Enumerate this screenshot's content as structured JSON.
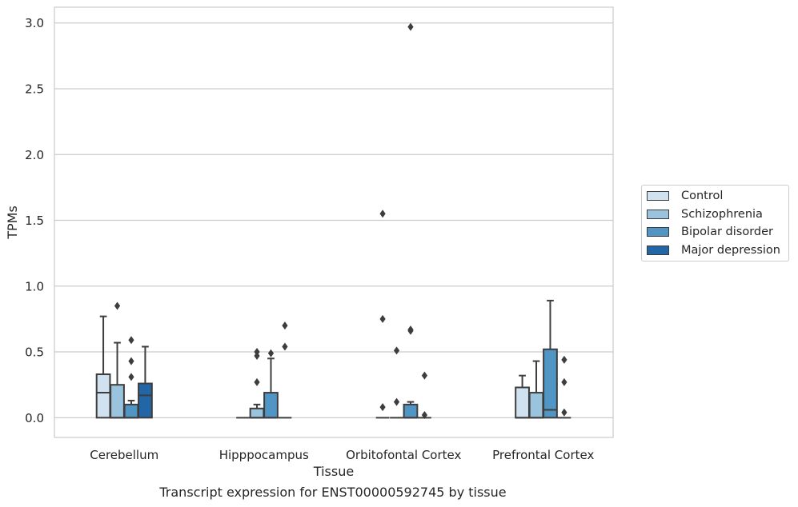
{
  "caption": "Transcript expression for ENST00000592745 by tissue",
  "chart_data": {
    "type": "box",
    "xlabel": "Tissue",
    "ylabel": "TPMs",
    "ylim": [
      -0.15,
      3.12
    ],
    "yticks": [
      "0.0",
      "0.5",
      "1.0",
      "1.5",
      "2.0",
      "2.5",
      "3.0"
    ],
    "grid": "horizontal",
    "legend_position": "center-right",
    "categories": [
      "Cerebellum",
      "Hipppocampus",
      "Orbitofontal Cortex",
      "Prefrontal Cortex"
    ],
    "series": [
      {
        "name": "Control",
        "color": "#d0e1f0",
        "boxes": [
          {
            "q1": 0.0,
            "median": 0.19,
            "q3": 0.33,
            "whisker_low": 0.0,
            "whisker_high": 0.77,
            "outliers": []
          },
          {
            "q1": 0.0,
            "median": 0.0,
            "q3": 0.0,
            "whisker_low": 0.0,
            "whisker_high": 0.0,
            "outliers": []
          },
          {
            "q1": 0.0,
            "median": 0.0,
            "q3": 0.0,
            "whisker_low": 0.0,
            "whisker_high": 0.0,
            "outliers": [
              0.08,
              0.75,
              1.55
            ]
          },
          {
            "q1": 0.0,
            "median": 0.0,
            "q3": 0.23,
            "whisker_low": 0.0,
            "whisker_high": 0.32,
            "outliers": []
          }
        ]
      },
      {
        "name": "Schizophrenia",
        "color": "#9ac3de",
        "boxes": [
          {
            "q1": 0.0,
            "median": 0.0,
            "q3": 0.25,
            "whisker_low": 0.0,
            "whisker_high": 0.57,
            "outliers": [
              0.85
            ]
          },
          {
            "q1": 0.0,
            "median": 0.0,
            "q3": 0.07,
            "whisker_low": 0.0,
            "whisker_high": 0.1,
            "outliers": [
              0.27,
              0.47,
              0.5
            ]
          },
          {
            "q1": 0.0,
            "median": 0.0,
            "q3": 0.0,
            "whisker_low": 0.0,
            "whisker_high": 0.0,
            "outliers": [
              0.12,
              0.51
            ]
          },
          {
            "q1": 0.0,
            "median": 0.0,
            "q3": 0.19,
            "whisker_low": 0.0,
            "whisker_high": 0.43,
            "outliers": []
          }
        ]
      },
      {
        "name": "Bipolar disorder",
        "color": "#5095c3",
        "boxes": [
          {
            "q1": 0.0,
            "median": 0.0,
            "q3": 0.1,
            "whisker_low": 0.0,
            "whisker_high": 0.13,
            "outliers": [
              0.31,
              0.43,
              0.59
            ]
          },
          {
            "q1": 0.0,
            "median": 0.0,
            "q3": 0.19,
            "whisker_low": 0.0,
            "whisker_high": 0.45,
            "outliers": [
              0.49
            ]
          },
          {
            "q1": 0.0,
            "median": 0.0,
            "q3": 0.1,
            "whisker_low": 0.0,
            "whisker_high": 0.12,
            "outliers": [
              0.66,
              0.67,
              2.97
            ]
          },
          {
            "q1": 0.0,
            "median": 0.06,
            "q3": 0.52,
            "whisker_low": 0.0,
            "whisker_high": 0.89,
            "outliers": []
          }
        ]
      },
      {
        "name": "Major depression",
        "color": "#2366a6",
        "boxes": [
          {
            "q1": 0.0,
            "median": 0.17,
            "q3": 0.26,
            "whisker_low": 0.0,
            "whisker_high": 0.54,
            "outliers": []
          },
          {
            "q1": 0.0,
            "median": 0.0,
            "q3": 0.0,
            "whisker_low": 0.0,
            "whisker_high": 0.0,
            "outliers": [
              0.54,
              0.7
            ]
          },
          {
            "q1": 0.0,
            "median": 0.0,
            "q3": 0.0,
            "whisker_low": 0.0,
            "whisker_high": 0.0,
            "outliers": [
              0.02,
              0.32
            ]
          },
          {
            "q1": 0.0,
            "median": 0.0,
            "q3": 0.0,
            "whisker_low": 0.0,
            "whisker_high": 0.0,
            "outliers": [
              0.04,
              0.27,
              0.44
            ]
          }
        ]
      }
    ]
  }
}
